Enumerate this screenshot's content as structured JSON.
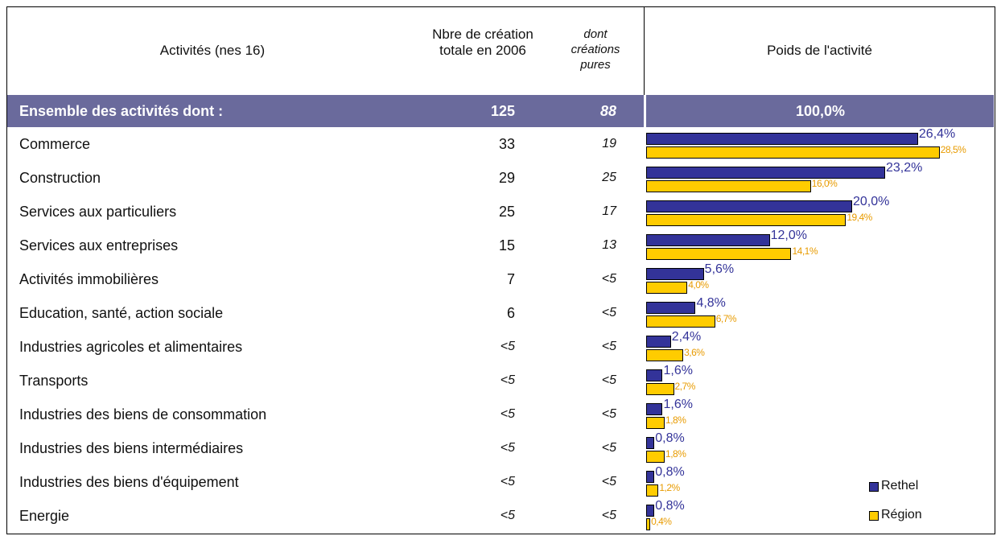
{
  "table": {
    "header": {
      "activity": "Activités (nes 16)",
      "total": "Nbre de création totale en 2006",
      "pure": "dont créations pures",
      "weight": "Poids de l'activité"
    },
    "summary": {
      "label": "Ensemble des activités dont :",
      "total": "125",
      "pure": "88",
      "weight": "100,0%"
    },
    "rows": [
      [
        "Commerce",
        "33",
        "19"
      ],
      [
        "Construction",
        "29",
        "25"
      ],
      [
        "Services aux particuliers",
        "25",
        "17"
      ],
      [
        "Services aux entreprises",
        "15",
        "13"
      ],
      [
        "Activités immobilières",
        "7",
        "<5"
      ],
      [
        "Education, santé, action sociale",
        "6",
        "<5"
      ],
      [
        "Industries agricoles et alimentaires",
        "<5",
        "<5"
      ],
      [
        "Transports",
        "<5",
        "<5"
      ],
      [
        "Industries des biens de consommation",
        "<5",
        "<5"
      ],
      [
        "Industries des biens intermédiaires",
        "<5",
        "<5"
      ],
      [
        "Industries des biens d'équipement",
        "<5",
        "<5"
      ],
      [
        "Energie",
        "<5",
        "<5"
      ]
    ]
  },
  "chart_data": {
    "type": "bar",
    "orientation": "horizontal",
    "series": [
      {
        "name": "Rethel",
        "color": "#333399",
        "values": [
          26.4,
          23.2,
          20.0,
          12.0,
          5.6,
          4.8,
          2.4,
          1.6,
          1.6,
          0.8,
          0.8,
          0.8
        ],
        "value_labels": [
          "26,4%",
          "23,2%",
          "20,0%",
          "12,0%",
          "5,6%",
          "4,8%",
          "2,4%",
          "1,6%",
          "1,6%",
          "0,8%",
          "0,8%",
          "0,8%"
        ]
      },
      {
        "name": "Région",
        "color": "#ffcc00",
        "values": [
          28.5,
          16.0,
          19.4,
          14.1,
          4.0,
          6.7,
          3.6,
          2.7,
          1.8,
          1.8,
          1.2,
          0.4
        ],
        "value_labels": [
          "28,5%",
          "16,0%",
          "19,4%",
          "14,1%",
          "4,0%",
          "6,7%",
          "3,6%",
          "2,7%",
          "1,8%",
          "1,8%",
          "1,2%",
          "0,4%"
        ]
      }
    ]
  }
}
